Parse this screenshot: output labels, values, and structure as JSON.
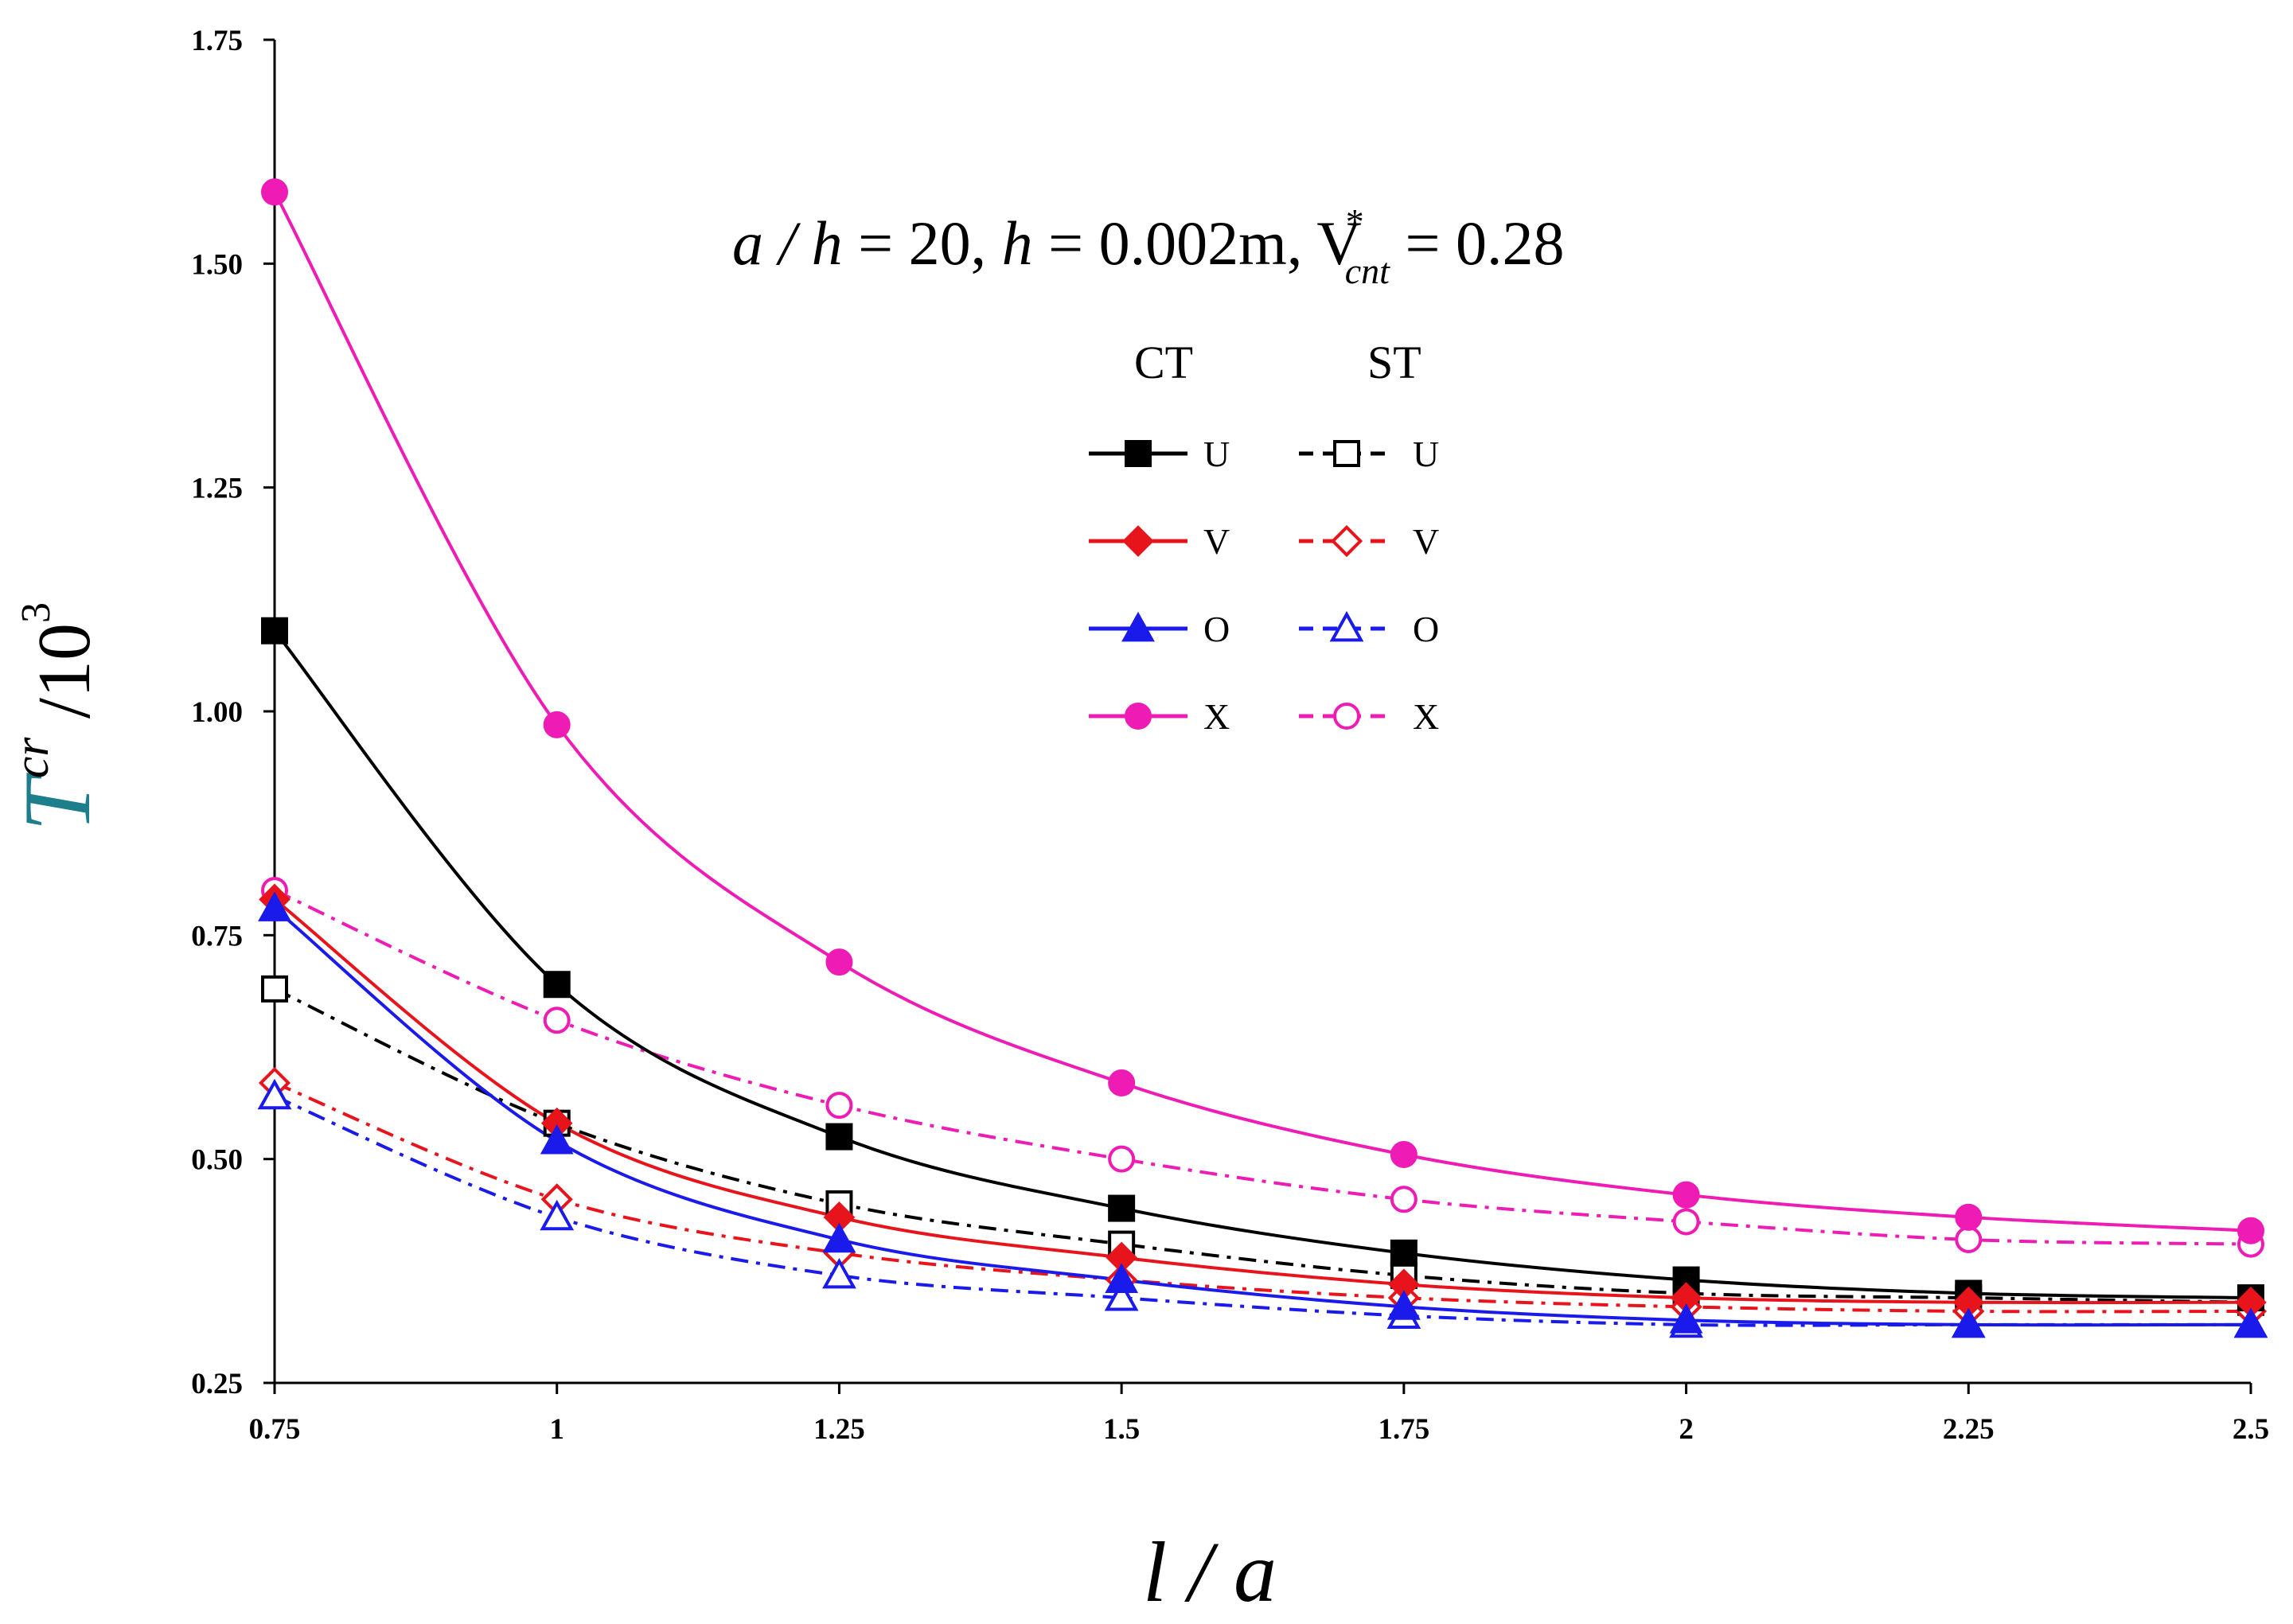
{
  "chart_data": {
    "type": "line",
    "title": "",
    "annotation": {
      "part1": "a / h",
      "part2": " = 20,  ",
      "part3": "h",
      "part4": " = 0.002m,  V",
      "sup": "*",
      "sub": "cnt",
      "part5": " = 0.28"
    },
    "xlabel": "l / a",
    "ylabel": {
      "main": "T",
      "sup": "cr",
      "div": " /10",
      "exp": "3"
    },
    "x": [
      0.75,
      1,
      1.25,
      1.5,
      1.75,
      2,
      2.25,
      2.5
    ],
    "x_tick_labels": [
      "0.75",
      "1",
      "1.25",
      "1.5",
      "1.75",
      "2",
      "2.25",
      "2.5"
    ],
    "ylim": [
      0.25,
      1.75
    ],
    "y_tick_values": [
      0.25,
      0.5,
      0.75,
      1.0,
      1.25,
      1.5,
      1.75
    ],
    "y_tick_labels": [
      "0.25",
      "0.50",
      "0.75",
      "1.00",
      "1.25",
      "1.50",
      "1.75"
    ],
    "legend": {
      "headers": [
        "CT",
        "ST"
      ],
      "placement": "upper-center"
    },
    "series": [
      {
        "name": "U",
        "group": "CT",
        "color": "#000000",
        "marker": "square",
        "filled": true,
        "dash": "solid",
        "values": [
          1.09,
          0.695,
          0.525,
          0.445,
          0.395,
          0.365,
          0.35,
          0.345
        ]
      },
      {
        "name": "V",
        "group": "CT",
        "color": "#e8141c",
        "marker": "diamond",
        "filled": true,
        "dash": "solid",
        "values": [
          0.79,
          0.54,
          0.435,
          0.39,
          0.36,
          0.345,
          0.34,
          0.34
        ]
      },
      {
        "name": "O",
        "group": "CT",
        "color": "#1a1aeb",
        "marker": "triangle",
        "filled": true,
        "dash": "solid",
        "values": [
          0.78,
          0.52,
          0.41,
          0.365,
          0.335,
          0.32,
          0.315,
          0.315
        ]
      },
      {
        "name": "X",
        "group": "CT",
        "color": "#ee1bb4",
        "marker": "circle",
        "filled": true,
        "dash": "solid",
        "values": [
          1.58,
          0.985,
          0.72,
          0.585,
          0.505,
          0.46,
          0.435,
          0.42
        ]
      },
      {
        "name": "U",
        "group": "ST",
        "color": "#000000",
        "marker": "square",
        "filled": false,
        "dash": "dashdot",
        "values": [
          0.69,
          0.54,
          0.45,
          0.405,
          0.37,
          0.35,
          0.345,
          0.34
        ]
      },
      {
        "name": "V",
        "group": "ST",
        "color": "#e8141c",
        "marker": "diamond",
        "filled": false,
        "dash": "dashdot",
        "values": [
          0.585,
          0.455,
          0.395,
          0.365,
          0.345,
          0.335,
          0.33,
          0.33
        ]
      },
      {
        "name": "O",
        "group": "ST",
        "color": "#1a1aeb",
        "marker": "triangle",
        "filled": false,
        "dash": "dashdot",
        "values": [
          0.57,
          0.435,
          0.37,
          0.345,
          0.325,
          0.315,
          0.315,
          0.315
        ]
      },
      {
        "name": "X",
        "group": "ST",
        "color": "#ee1bb4",
        "marker": "circle",
        "filled": false,
        "dash": "dashdot",
        "values": [
          0.8,
          0.655,
          0.56,
          0.5,
          0.455,
          0.43,
          0.41,
          0.405
        ]
      }
    ]
  }
}
